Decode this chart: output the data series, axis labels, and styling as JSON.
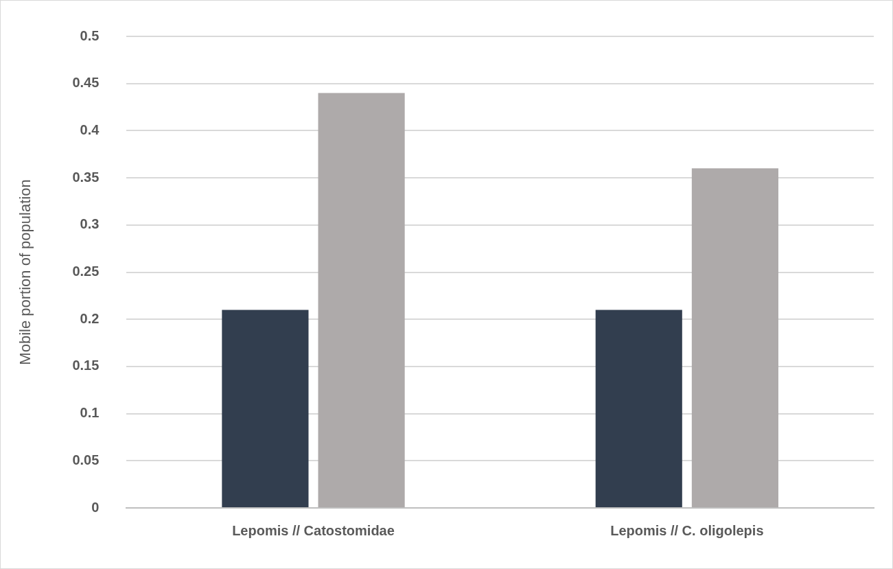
{
  "chart_data": {
    "type": "bar",
    "ylabel": "Mobile portion of population",
    "categories": [
      "Lepomis // Catostomidae",
      "Lepomis // C. oligolepis"
    ],
    "series": [
      {
        "color": "#323e4f",
        "values": [
          0.21,
          0.21
        ]
      },
      {
        "color": "#aeaaaa",
        "values": [
          0.44,
          0.36
        ]
      }
    ],
    "ylim": [
      0,
      0.5
    ],
    "yticks": [
      0,
      0.05,
      0.1,
      0.15,
      0.2,
      0.25,
      0.3,
      0.35,
      0.4,
      0.45,
      0.5
    ],
    "grid": "y",
    "legend": false
  }
}
